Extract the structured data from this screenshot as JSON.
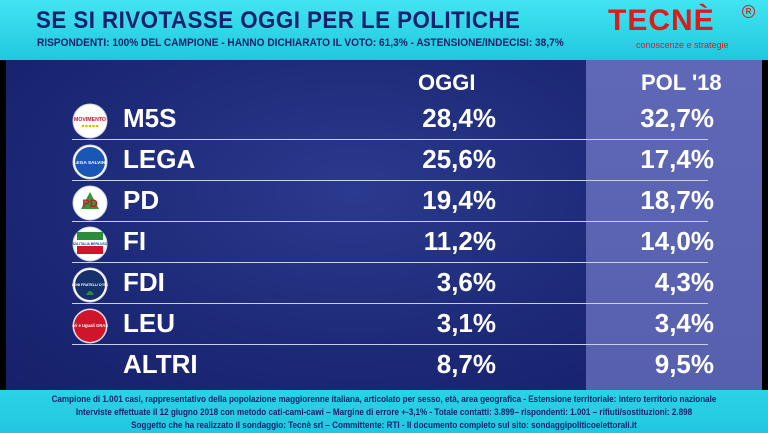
{
  "header": {
    "title": "SE SI RIVOTASSE OGGI PER LE POLITICHE",
    "subtitle": "RISPONDENTI: 100% DEL CAMPIONE - HANNO DICHIARATO IL VOTO: 61,3% - ASTENSIONE/INDECISI: 38,7%"
  },
  "brand": {
    "name": "TECNÈ",
    "registered": "R",
    "tagline": "conoscenze e strategie",
    "color": "#d91c1c"
  },
  "logos": {
    "M5S": "MOVIMENTO",
    "LEGA": "LEGA SALVINI",
    "PD": "PD",
    "FI": "FORZA ITALIA BERLUSCONI",
    "FDI": "MELONI FRATELLI D'ITALIA",
    "LEU": "Liberi e Uguali GRASSO"
  },
  "chart_data": {
    "type": "table",
    "columns": [
      "OGGI",
      "POL '18"
    ],
    "rows": [
      {
        "party": "M5S",
        "oggi": "28,4%",
        "pol18": "32,7%",
        "logo_icon": "m5s-logo-icon"
      },
      {
        "party": "LEGA",
        "oggi": "25,6%",
        "pol18": "17,4%",
        "logo_icon": "lega-logo-icon"
      },
      {
        "party": "PD",
        "oggi": "19,4%",
        "pol18": "18,7%",
        "logo_icon": "pd-logo-icon"
      },
      {
        "party": "FI",
        "oggi": "11,2%",
        "pol18": "14,0%",
        "logo_icon": "fi-logo-icon"
      },
      {
        "party": "FDI",
        "oggi": "3,6%",
        "pol18": "4,3%",
        "logo_icon": "fdi-logo-icon"
      },
      {
        "party": "LEU",
        "oggi": "3,1%",
        "pol18": "3,4%",
        "logo_icon": "leu-logo-icon"
      },
      {
        "party": "ALTRI",
        "oggi": "8,7%",
        "pol18": "9,5%",
        "logo_icon": ""
      }
    ]
  },
  "footer": {
    "line1": "Campione di 1.001 casi, rappresentativo della popolazione maggiorenne italiana, articolato per sesso, età, area geografica - Estensione territoriale: intero territorio nazionale",
    "line2": "Interviste effettuate il 12 giugno 2018 con metodo cati-cami-cawi  – Margine di errore +-3,1% - Totale contatti: 3.899– rispondenti: 1.001 – rifiuti/sostituzioni: 2.898",
    "line3": "Soggetto che ha realizzato il sondaggio: Tecnè srl – Committente: RTI - Il documento completo sul sito: sondaggipoliticoelettorali.it"
  },
  "colors": {
    "accent": "#1fc8de",
    "panel": "#1d2a78",
    "pol_panel": "#5660ad",
    "text": "#ffffff",
    "title_text": "#17206d"
  }
}
